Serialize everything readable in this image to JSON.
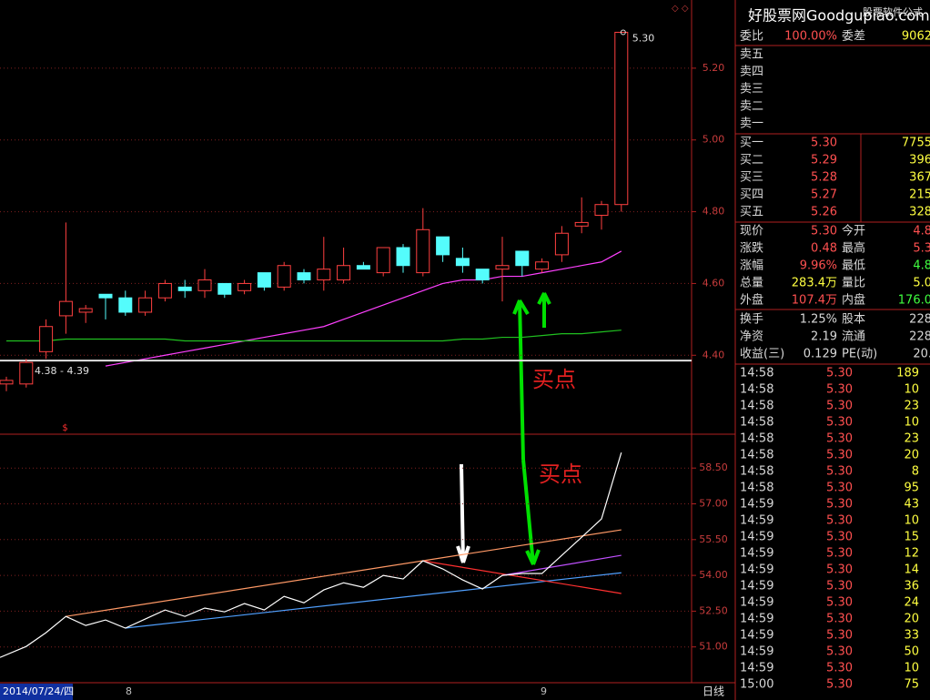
{
  "kline": {
    "type": "candlestick",
    "open": [
      4.32,
      4.32,
      4.41,
      4.51,
      4.52,
      4.57,
      4.56,
      4.52,
      4.56,
      4.59,
      4.58,
      4.6,
      4.58,
      4.63,
      4.59,
      4.63,
      4.61,
      4.61,
      4.65,
      4.63,
      4.7,
      4.63,
      4.73,
      4.67,
      4.64,
      4.64,
      4.69,
      4.64,
      4.68,
      4.76,
      4.79,
      4.82
    ],
    "high": [
      4.34,
      4.39,
      4.5,
      4.77,
      4.54,
      4.57,
      4.58,
      4.58,
      4.61,
      4.61,
      4.64,
      4.6,
      4.61,
      4.63,
      4.66,
      4.64,
      4.73,
      4.7,
      4.66,
      4.7,
      4.71,
      4.81,
      4.73,
      4.7,
      4.64,
      4.73,
      4.69,
      4.67,
      4.76,
      4.84,
      4.83,
      5.3
    ],
    "low": [
      4.3,
      4.31,
      4.39,
      4.46,
      4.49,
      4.5,
      4.51,
      4.51,
      4.55,
      4.56,
      4.56,
      4.56,
      4.57,
      4.58,
      4.58,
      4.6,
      4.58,
      4.6,
      4.64,
      4.62,
      4.63,
      4.62,
      4.66,
      4.63,
      4.6,
      4.55,
      4.62,
      4.63,
      4.66,
      4.74,
      4.75,
      4.8
    ],
    "close": [
      4.33,
      4.38,
      4.48,
      4.55,
      4.53,
      4.56,
      4.52,
      4.56,
      4.6,
      4.58,
      4.61,
      4.57,
      4.6,
      4.59,
      4.65,
      4.61,
      4.64,
      4.65,
      4.64,
      4.7,
      4.65,
      4.75,
      4.68,
      4.65,
      4.61,
      4.65,
      4.65,
      4.66,
      4.74,
      4.77,
      4.82,
      5.3
    ],
    "up_color": "#ff4040",
    "down_color": "#54fcfc",
    "ma": [
      {
        "color": "#ff40ff",
        "values": [
          null,
          null,
          null,
          null,
          null,
          4.37,
          4.38,
          4.39,
          4.4,
          4.41,
          4.42,
          4.43,
          4.44,
          4.45,
          4.46,
          4.47,
          4.48,
          4.5,
          4.52,
          4.54,
          4.56,
          4.58,
          4.6,
          4.61,
          4.61,
          4.62,
          4.62,
          4.63,
          4.64,
          4.65,
          4.66,
          4.69
        ]
      },
      {
        "color": "#20c020",
        "values": [
          4.44,
          4.44,
          4.44,
          4.445,
          4.445,
          4.445,
          4.445,
          4.445,
          4.445,
          4.44,
          4.44,
          4.44,
          4.44,
          4.44,
          4.44,
          4.44,
          4.44,
          4.44,
          4.44,
          4.44,
          4.44,
          4.44,
          4.44,
          4.445,
          4.445,
          4.45,
          4.45,
          4.455,
          4.46,
          4.46,
          4.465,
          4.47
        ]
      }
    ],
    "ylim": [
      4.18,
      5.39
    ],
    "yticks": [
      {
        "value": 4.4,
        "label": "4.40"
      },
      {
        "value": 4.6,
        "label": "4.60"
      },
      {
        "value": 4.8,
        "label": "4.80"
      },
      {
        "value": 5.0,
        "label": "5.00"
      },
      {
        "value": 5.2,
        "label": "5.20"
      }
    ],
    "last_label": "5.30",
    "level": {
      "value": 4.385,
      "label": "4.38 - 4.39"
    },
    "signal": "$",
    "annotation": "买点"
  },
  "indicator": {
    "type": "line",
    "color": "#ffffff",
    "values": [
      50.56,
      51.02,
      51.6,
      52.28,
      51.9,
      52.13,
      51.79,
      52.17,
      52.55,
      52.28,
      52.63,
      52.47,
      52.82,
      52.55,
      53.12,
      52.85,
      53.39,
      53.69,
      53.5,
      54.0,
      53.85,
      54.61,
      54.27,
      53.81,
      53.43,
      54.0,
      54.08,
      54.08,
      54.84,
      55.6,
      56.37,
      59.15
    ],
    "lines": [
      {
        "color": "#ff9966",
        "x": [
          3,
          31
        ],
        "values": [
          52.28,
          55.91
        ]
      },
      {
        "color": "#50a0ff",
        "x": [
          6,
          31
        ],
        "values": [
          51.79,
          54.11
        ]
      },
      {
        "color": "#ff3030",
        "x": [
          21,
          31
        ],
        "values": [
          54.61,
          53.24
        ]
      },
      {
        "color": "#c050ff",
        "x": [
          25,
          31
        ],
        "values": [
          54.0,
          54.84
        ]
      }
    ],
    "ylim": [
      49.5,
      59.92
    ],
    "yticks": [
      {
        "value": 51,
        "label": "51.00"
      },
      {
        "value": 52.5,
        "label": "52.50"
      },
      {
        "value": 54,
        "label": "54.00"
      },
      {
        "value": 55.5,
        "label": "55.50"
      },
      {
        "value": 57,
        "label": "57.00"
      },
      {
        "value": 58.5,
        "label": "58.50"
      }
    ],
    "annotation": "买点"
  },
  "timeline": {
    "date": "2014/07/24/四",
    "marks": [
      "8",
      "9"
    ],
    "period": "日线"
  },
  "quote": {
    "brand": "好股票网Goodgupiao.com",
    "brand2": "股票软件公式",
    "ratio": [
      "委比",
      "100.00%",
      "委差",
      "9062"
    ],
    "asks": [
      "卖五",
      "卖四",
      "卖三",
      "卖二",
      "卖一"
    ],
    "bids": [
      [
        "买一",
        "5.30",
        "7755"
      ],
      [
        "买二",
        "5.29",
        "396"
      ],
      [
        "买三",
        "5.28",
        "367"
      ],
      [
        "买四",
        "5.27",
        "215"
      ],
      [
        "买五",
        "5.26",
        "328"
      ]
    ],
    "stats": [
      [
        "现价",
        "5.30",
        "今开",
        "4.8"
      ],
      [
        "涨跌",
        "0.48",
        "最高",
        "5.3"
      ],
      [
        "涨幅",
        "9.96%",
        "最低",
        "4.8"
      ],
      [
        "总量",
        "283.4万",
        "量比",
        "5.0"
      ],
      [
        "外盘",
        "107.4万",
        "内盘",
        "176.0"
      ]
    ],
    "stats2": [
      [
        "换手",
        "1.25%",
        "股本",
        "228"
      ],
      [
        "净资",
        "2.19",
        "流通",
        "228"
      ],
      [
        "收益(三)",
        "0.129",
        "PE(动)",
        "20."
      ]
    ],
    "ticks": [
      [
        "14:58",
        "5.30",
        "189"
      ],
      [
        "14:58",
        "5.30",
        "10"
      ],
      [
        "14:58",
        "5.30",
        "23"
      ],
      [
        "14:58",
        "5.30",
        "10"
      ],
      [
        "14:58",
        "5.30",
        "23"
      ],
      [
        "14:58",
        "5.30",
        "20"
      ],
      [
        "14:58",
        "5.30",
        "8"
      ],
      [
        "14:58",
        "5.30",
        "95"
      ],
      [
        "14:59",
        "5.30",
        "43"
      ],
      [
        "14:59",
        "5.30",
        "10"
      ],
      [
        "14:59",
        "5.30",
        "15"
      ],
      [
        "14:59",
        "5.30",
        "12"
      ],
      [
        "14:59",
        "5.30",
        "14"
      ],
      [
        "14:59",
        "5.30",
        "36"
      ],
      [
        "14:59",
        "5.30",
        "24"
      ],
      [
        "14:59",
        "5.30",
        "20"
      ],
      [
        "14:59",
        "5.30",
        "33"
      ],
      [
        "14:59",
        "5.30",
        "50"
      ],
      [
        "14:59",
        "5.30",
        "10"
      ],
      [
        "15:00",
        "5.30",
        "75"
      ]
    ]
  }
}
